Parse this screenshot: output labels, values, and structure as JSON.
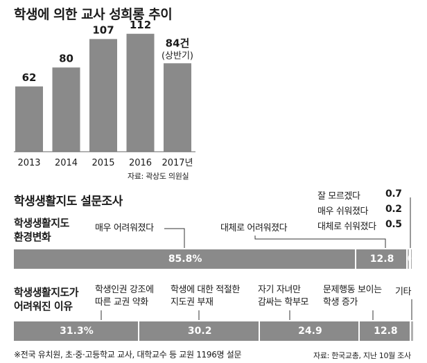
{
  "chart_data": [
    {
      "type": "bar",
      "title": "학생에 의한 교사 성희롱 추이",
      "categories": [
        "2013",
        "2014",
        "2015",
        "2016",
        "2017년"
      ],
      "values": [
        62,
        80,
        107,
        112,
        84
      ],
      "value_labels": [
        "62",
        "80",
        "107",
        "112",
        "84건"
      ],
      "value_note": "(상반기)",
      "source": "자료: 곽상도 의원실",
      "bar_color": "#8a8a8a"
    },
    {
      "type": "bar",
      "title": "학생생활지도 설문조사",
      "subtitle": "학생생활지도 환경변화",
      "subtitle_lines": [
        "학생생활지도",
        "환경변화"
      ],
      "orientation": "horizontal-stacked",
      "segments": [
        {
          "label": "매우 어려워졌다",
          "value": 85.8,
          "display": "85.8%"
        },
        {
          "label": "대체로 어려워졌다",
          "value": 12.8,
          "display": "12.8"
        },
        {
          "label": "잘 모르겠다",
          "value": 0.7,
          "display": "0.7"
        },
        {
          "label": "매우 쉬워졌다",
          "value": 0.2,
          "display": "0.2"
        },
        {
          "label": "대체로 쉬워졌다",
          "value": 0.5,
          "display": "0.5"
        }
      ]
    },
    {
      "type": "bar",
      "subtitle": "학생생활지도가 어려워진 이유",
      "subtitle_lines": [
        "학생생활지도가",
        "어려워진 이유"
      ],
      "orientation": "horizontal-stacked",
      "segments": [
        {
          "label_lines": [
            "학생인권 강조에",
            "따른 교권 약화"
          ],
          "value": 31.3,
          "display": "31.3%"
        },
        {
          "label_lines": [
            "학생에 대한 적절한",
            "지도권 부재"
          ],
          "value": 30.2,
          "display": "30.2"
        },
        {
          "label_lines": [
            "자기 자녀만",
            "감싸는 학부모"
          ],
          "value": 24.9,
          "display": "24.9"
        },
        {
          "label_lines": [
            "문제행동 보이는",
            "학생 증가"
          ],
          "value": 12.8,
          "display": "12.8"
        },
        {
          "label_lines": [
            "기타"
          ],
          "value": 0.8,
          "display": ""
        }
      ]
    }
  ],
  "footer": {
    "note": "※전국 유치원, 초·중·고등학교 교사, 대학교수 등 교원 1196명 설문",
    "source": "자료: 한국교총, 지난 10월 조사"
  }
}
